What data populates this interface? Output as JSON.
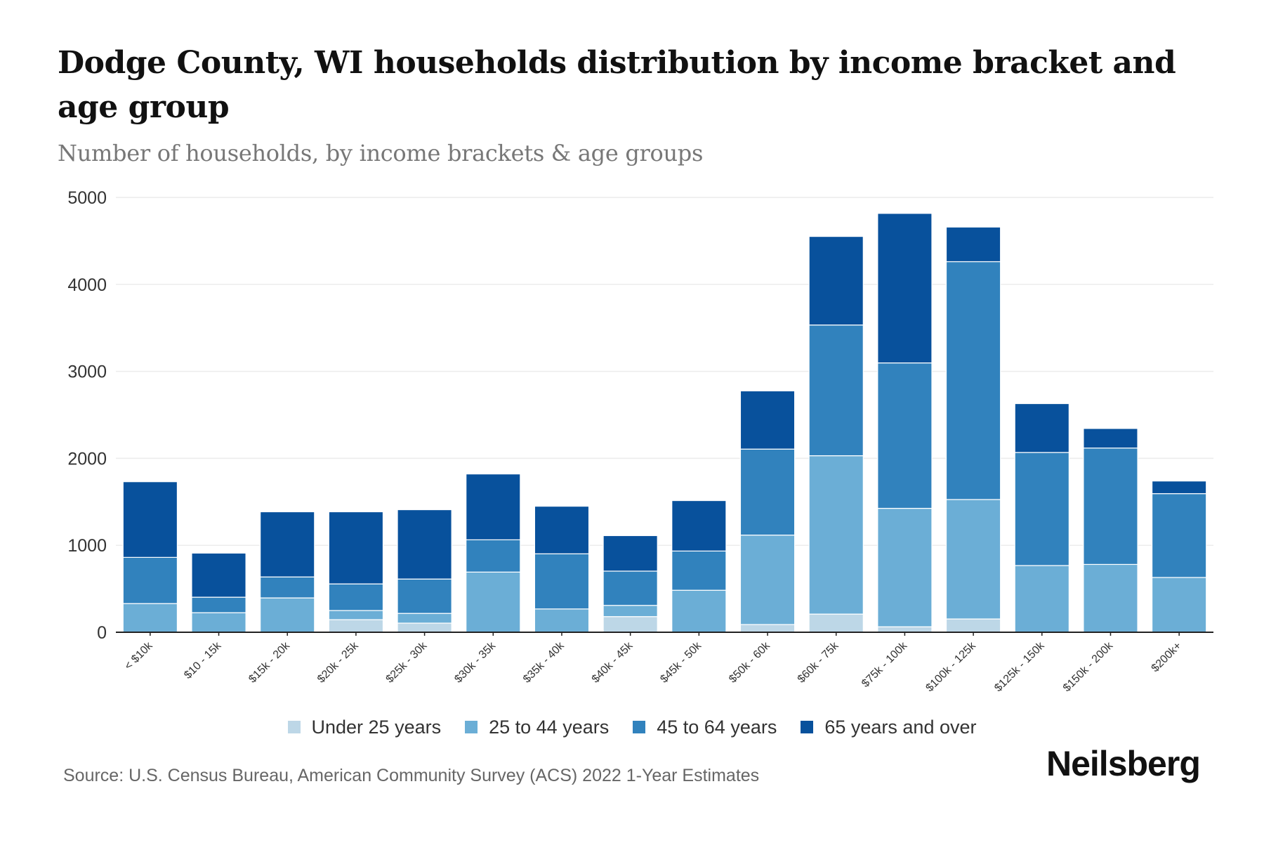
{
  "header": {
    "title": "Dodge County, WI households distribution by income bracket and age group",
    "subtitle": "Number of households, by income brackets & age groups"
  },
  "footer": {
    "source": "Source: U.S. Census Bureau, American Community Survey (ACS) 2022 1-Year Estimates",
    "logo": "Neilsberg"
  },
  "chart_data": {
    "type": "bar",
    "stacked": true,
    "title": "Dodge County, WI households distribution by income bracket and age group",
    "subtitle": "Number of households, by income brackets & age groups",
    "xlabel": "",
    "ylabel": "",
    "ylim": [
      0,
      5000
    ],
    "yticks": [
      0,
      1000,
      2000,
      3000,
      4000,
      5000
    ],
    "grid": true,
    "legend_position": "bottom",
    "categories": [
      "< $10k",
      "$10 - 15k",
      "$15k - 20k",
      "$20k - 25k",
      "$25k - 30k",
      "$30k - 35k",
      "$35k - 40k",
      "$40k - 45k",
      "$45k - 50k",
      "$50k - 60k",
      "$60k - 75k",
      "$75k - 100k",
      "$100k - 125k",
      "$125k - 150k",
      "$150k - 200k",
      "$200k+"
    ],
    "series": [
      {
        "name": "Under 25 years",
        "color": "#bdd7e7",
        "values": [
          0,
          0,
          0,
          145,
          105,
          0,
          0,
          180,
          0,
          89,
          209,
          63,
          153,
          0,
          0,
          0
        ]
      },
      {
        "name": "25 to 44 years",
        "color": "#6baed6",
        "values": [
          330,
          225,
          395,
          105,
          112,
          692,
          268,
          129,
          483,
          1028,
          1821,
          1362,
          1373,
          767,
          780,
          630
        ]
      },
      {
        "name": "45 to 64 years",
        "color": "#3182bd",
        "values": [
          531,
          178,
          241,
          306,
          395,
          371,
          634,
          394,
          451,
          989,
          1503,
          1672,
          2735,
          1300,
          1338,
          964
        ]
      },
      {
        "name": "65 years and over",
        "color": "#08519c",
        "values": [
          870,
          507,
          749,
          829,
          797,
          757,
          547,
          408,
          580,
          669,
          1018,
          1719,
          398,
          562,
          225,
          145
        ]
      }
    ]
  }
}
